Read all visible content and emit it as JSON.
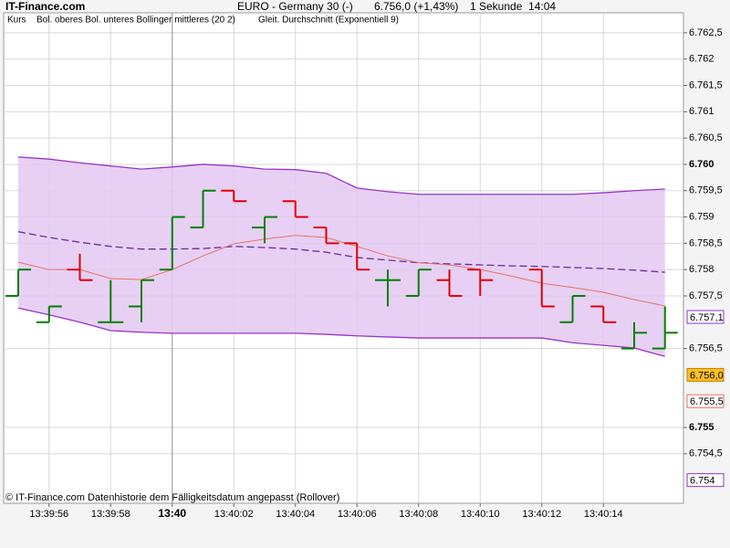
{
  "chart_data": {
    "type": "ohlc",
    "brand": "IT-Finance.com",
    "title": "EURO - Germany 30 (-)",
    "quote": "6.756,0 (+1,43%)",
    "interval": "1 Sekunde  14:04",
    "footer": "© IT-Finance.com  Datenhistorie dem Fälligkeitsdatum angepasst (Rollover)",
    "categories": [
      null,
      "13:39:56",
      null,
      "13:39:58",
      null,
      "13:40",
      null,
      "13:40:02",
      null,
      "13:40:04",
      null,
      "13:40:06",
      null,
      "13:40:08",
      null,
      "13:40:10",
      null,
      "13:40:12",
      null,
      "13:40:14",
      null,
      null
    ],
    "ohlc": {
      "name": "Kurs",
      "up_color": "#008000",
      "down_color": "#e00000",
      "open": [
        6757.5,
        6757.0,
        6758.0,
        6757.0,
        6757.3,
        6758.0,
        6758.8,
        6759.5,
        6758.8,
        6759.3,
        6758.8,
        6758.5,
        6757.8,
        6757.5,
        6757.8,
        6758.0,
        null,
        6758.0,
        6757.0,
        6757.3,
        6756.5,
        6756.5
      ],
      "high": [
        6758.0,
        6757.3,
        6758.3,
        6757.8,
        6757.8,
        6759.0,
        6759.5,
        6759.5,
        6759.0,
        6759.3,
        6758.8,
        6758.5,
        6758.0,
        6758.0,
        6758.0,
        6758.0,
        null,
        6758.0,
        6757.5,
        6757.3,
        6757.0,
        6757.3
      ],
      "low": [
        6757.5,
        6757.0,
        6757.8,
        6757.0,
        6757.0,
        6758.0,
        6758.8,
        6759.3,
        6758.5,
        6759.0,
        6758.5,
        6758.0,
        6757.3,
        6757.5,
        6757.5,
        6757.5,
        null,
        6757.3,
        6757.0,
        6757.0,
        6756.5,
        6756.5
      ],
      "close": [
        6758.0,
        6757.3,
        6757.8,
        6757.0,
        6757.8,
        6759.0,
        6759.5,
        6759.3,
        6759.0,
        6759.0,
        6758.5,
        6758.0,
        6757.8,
        6758.0,
        6757.5,
        6757.8,
        null,
        6757.3,
        6757.5,
        6757.0,
        6756.8,
        6756.8
      ]
    },
    "bollinger": {
      "name": "Bol. oberes Bol. unteres Bollinger mittleres (20 2)",
      "color": "#9932cc",
      "middle_color": "#6a2aa0",
      "fill": "#e3c8f2",
      "upper": [
        6760.14,
        6760.1,
        6760.03,
        6759.97,
        6759.91,
        6759.95,
        6760.0,
        6759.97,
        6759.91,
        6759.9,
        6759.83,
        6759.55,
        6759.48,
        6759.43,
        6759.43,
        6759.43,
        6759.43,
        6759.43,
        6759.43,
        6759.46,
        6759.5,
        6759.53
      ],
      "lower": [
        6757.27,
        6757.14,
        6757.0,
        6756.84,
        6756.81,
        6756.79,
        6756.79,
        6756.79,
        6756.79,
        6756.79,
        6756.77,
        6756.74,
        6756.72,
        6756.7,
        6756.7,
        6756.7,
        6756.7,
        6756.7,
        6756.61,
        6756.56,
        6756.51,
        6756.35
      ],
      "middle": [
        6758.72,
        6758.61,
        6758.52,
        6758.44,
        6758.39,
        6758.39,
        6758.4,
        6758.44,
        6758.42,
        6758.39,
        6758.33,
        6758.23,
        6758.18,
        6758.13,
        6758.11,
        6758.09,
        6758.07,
        6758.06,
        6758.04,
        6758.02,
        6757.99,
        6757.95
      ]
    },
    "ema": {
      "name": "Gleit. Durchschnitt (Exponentiell 9)",
      "color": "#e87060",
      "values": [
        6758.14,
        6758.0,
        6758.0,
        6757.83,
        6757.81,
        6758.0,
        6758.26,
        6758.49,
        6758.58,
        6758.65,
        6758.61,
        6758.44,
        6758.26,
        6758.13,
        6758.09,
        6758.0,
        6757.88,
        6757.74,
        6757.66,
        6757.57,
        6757.43,
        6757.31
      ]
    },
    "ylim": [
      6753.56,
      6762.88
    ],
    "yticks": [
      {
        "value": 6762.5,
        "label": "6.762,5"
      },
      {
        "value": 6762,
        "label": "6.762"
      },
      {
        "value": 6761.5,
        "label": "6.761,5"
      },
      {
        "value": 6761,
        "label": "6.761"
      },
      {
        "value": 6760.5,
        "label": "6.760,5"
      },
      {
        "value": 6760,
        "label": "6.760"
      },
      {
        "value": 6759.5,
        "label": "6.759,5"
      },
      {
        "value": 6759,
        "label": "6.759"
      },
      {
        "value": 6758.5,
        "label": "6.758,5"
      },
      {
        "value": 6758,
        "label": "6.758"
      },
      {
        "value": 6757.5,
        "label": "6.757,5"
      },
      {
        "value": 6756.5,
        "label": "6.756,5"
      },
      {
        "value": 6755,
        "label": "6.755"
      },
      {
        "value": 6754.5,
        "label": "6.754,5"
      }
    ],
    "price_markers": [
      {
        "value": 6757.1,
        "label": "6.757,1",
        "border": "#9932cc",
        "fill": "#ffffff",
        "text_color": "#000000"
      },
      {
        "value": 6756.0,
        "label": "6.756,0",
        "border": "#c08000",
        "fill": "#ffc020",
        "text_color": "#000000"
      },
      {
        "value": 6755.5,
        "label": "6.755,5",
        "border": "#e87060",
        "fill": "#ffffff",
        "text_color": "#e87060"
      },
      {
        "value": 6754,
        "label": "6.754",
        "border": "#9932cc",
        "fill": "#ffffff",
        "text_color": "#000000"
      }
    ],
    "grid": true
  }
}
